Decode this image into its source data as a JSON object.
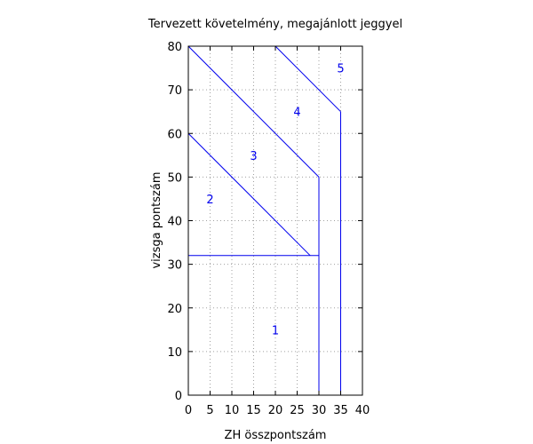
{
  "chart_data": {
    "type": "line",
    "title": "Tervezett követelmény, megajánlott jeggyel",
    "xlabel": "ZH összpontszám",
    "ylabel": "vizsga pontszám",
    "xlim": [
      0,
      40
    ],
    "ylim": [
      0,
      80
    ],
    "xticks": [
      0,
      5,
      10,
      15,
      20,
      25,
      30,
      35,
      40
    ],
    "yticks": [
      0,
      10,
      20,
      30,
      40,
      50,
      60,
      70,
      80
    ],
    "xtick_labels": [
      "0",
      "5",
      "10",
      "15",
      "20",
      "25",
      "30",
      "35",
      "40"
    ],
    "ytick_labels": [
      "0",
      "10",
      "20",
      "30",
      "40",
      "50",
      "60",
      "70",
      "80"
    ],
    "grid": true,
    "line_color": "#0000ee",
    "label_color": "#0000ee",
    "lines": [
      {
        "x": [
          0,
          30
        ],
        "y": [
          32,
          32
        ]
      },
      {
        "x": [
          30,
          30
        ],
        "y": [
          0,
          50
        ]
      },
      {
        "x": [
          0,
          28
        ],
        "y": [
          60,
          32
        ]
      },
      {
        "x": [
          0,
          30
        ],
        "y": [
          80,
          50
        ]
      },
      {
        "x": [
          20,
          35
        ],
        "y": [
          80,
          65
        ]
      },
      {
        "x": [
          35,
          35
        ],
        "y": [
          0,
          65
        ]
      }
    ],
    "region_labels": [
      {
        "text": "1",
        "x": 20,
        "y": 15
      },
      {
        "text": "2",
        "x": 5,
        "y": 45
      },
      {
        "text": "3",
        "x": 15,
        "y": 55
      },
      {
        "text": "4",
        "x": 25,
        "y": 65
      },
      {
        "text": "5",
        "x": 35,
        "y": 75
      }
    ]
  }
}
